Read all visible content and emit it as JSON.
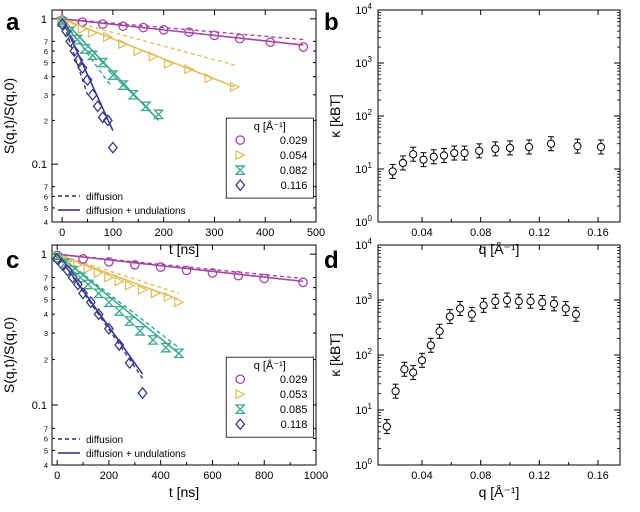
{
  "chart_data": [
    {
      "panel": "a",
      "type": "scatter",
      "xlabel": "t [ns]",
      "ylabel": "S(q,t)/S(q,0)",
      "xlim": [
        -20,
        500
      ],
      "ylim": [
        0.04,
        1.15
      ],
      "ylog": true,
      "xticks": [
        0,
        100,
        200,
        300,
        400,
        500
      ],
      "yticks_major": [
        0.1,
        1
      ],
      "yticks_minor": [
        0.04,
        0.05,
        0.06,
        0.07,
        0.2,
        0.3,
        0.4,
        0.5,
        0.6,
        0.7
      ],
      "legend_title": "q [Å⁻¹]",
      "legend_position": "bottom-right",
      "line_legend": [
        "diffusion",
        "diffusion + undulations"
      ],
      "series": [
        {
          "name": "0.029",
          "color": "#a347a3",
          "marker": "circle",
          "x": [
            0,
            40,
            80,
            120,
            160,
            200,
            250,
            300,
            350,
            410,
            475
          ],
          "y": [
            0.98,
            0.95,
            0.92,
            0.89,
            0.87,
            0.84,
            0.81,
            0.77,
            0.73,
            0.69,
            0.64
          ],
          "fit_undulations": [
            [
              0,
              1.0
            ],
            [
              475,
              0.66
            ]
          ],
          "fit_diffusion": [
            [
              0,
              1.0
            ],
            [
              475,
              0.72
            ]
          ]
        },
        {
          "name": "0.054",
          "color": "#e0c060",
          "marker": "triangle-right",
          "x": [
            0,
            20,
            40,
            60,
            90,
            120,
            150,
            180,
            210,
            250,
            290,
            340
          ],
          "y": [
            0.97,
            0.9,
            0.85,
            0.8,
            0.75,
            0.67,
            0.6,
            0.55,
            0.49,
            0.45,
            0.39,
            0.34
          ],
          "fit_undulations": [
            [
              0,
              1.0
            ],
            [
              340,
              0.34
            ]
          ],
          "fit_diffusion": [
            [
              0,
              1.0
            ],
            [
              340,
              0.48
            ]
          ]
        },
        {
          "name": "0.082",
          "color": "#3aa98f",
          "marker": "hourglass",
          "x": [
            0,
            15,
            30,
            45,
            60,
            80,
            100,
            120,
            140,
            165,
            190
          ],
          "y": [
            0.95,
            0.82,
            0.72,
            0.62,
            0.56,
            0.5,
            0.41,
            0.35,
            0.3,
            0.25,
            0.22
          ],
          "fit_undulations": [
            [
              0,
              1.0
            ],
            [
              190,
              0.2
            ]
          ],
          "fit_diffusion": [
            [
              0,
              1.0
            ],
            [
              95,
              0.35
            ]
          ]
        },
        {
          "name": "0.116",
          "color": "#3a3a8a",
          "marker": "diamond",
          "x": [
            0,
            8,
            16,
            24,
            32,
            40,
            50,
            60,
            70,
            80,
            90,
            100
          ],
          "y": [
            0.92,
            0.82,
            0.7,
            0.6,
            0.52,
            0.46,
            0.38,
            0.3,
            0.25,
            0.21,
            0.2,
            0.13
          ],
          "fit_undulations": [
            [
              0,
              1.0
            ],
            [
              100,
              0.17
            ]
          ],
          "fit_diffusion": [
            [
              0,
              1.0
            ],
            [
              50,
              0.3
            ]
          ]
        }
      ]
    },
    {
      "panel": "b",
      "type": "scatter",
      "xlabel": "q [Å⁻¹]",
      "ylabel": "κ [kBT]",
      "xlim": [
        0.01,
        0.175
      ],
      "ylim": [
        1,
        10000
      ],
      "ylog": true,
      "xticks": [
        0.04,
        0.08,
        0.12,
        0.16
      ],
      "yticks": [
        1,
        10,
        100,
        1000,
        10000
      ],
      "series": [
        {
          "name": "",
          "color": "#000000",
          "marker": "circle-errorbar",
          "x": [
            0.02,
            0.027,
            0.034,
            0.041,
            0.048,
            0.055,
            0.062,
            0.069,
            0.079,
            0.09,
            0.1,
            0.113,
            0.128,
            0.146,
            0.162
          ],
          "y": [
            9,
            13,
            19,
            15,
            17,
            18,
            20,
            20,
            22,
            24,
            25,
            26,
            30,
            27,
            26
          ]
        }
      ]
    },
    {
      "panel": "c",
      "type": "scatter",
      "xlabel": "t [ns]",
      "ylabel": "S(q,t)/S(q,0)",
      "xlim": [
        -20,
        1000
      ],
      "ylim": [
        0.04,
        1.15
      ],
      "ylog": true,
      "xticks": [
        0,
        200,
        400,
        600,
        800,
        1000
      ],
      "yticks_major": [
        0.1,
        1
      ],
      "yticks_minor": [
        0.04,
        0.05,
        0.06,
        0.07,
        0.2,
        0.3,
        0.4,
        0.5,
        0.6,
        0.7
      ],
      "legend_title": "q [Å⁻¹]",
      "legend_position": "bottom-right",
      "line_legend": [
        "diffusion",
        "diffusion + undulations"
      ],
      "series": [
        {
          "name": "0.029",
          "color": "#a347a3",
          "marker": "circle",
          "x": [
            0,
            100,
            200,
            300,
            400,
            500,
            600,
            700,
            800,
            950
          ],
          "y": [
            0.98,
            0.93,
            0.89,
            0.85,
            0.82,
            0.78,
            0.75,
            0.72,
            0.69,
            0.65
          ],
          "fit_undulations": [
            [
              0,
              1.0
            ],
            [
              950,
              0.66
            ]
          ],
          "fit_diffusion": [
            [
              0,
              1.0
            ],
            [
              950,
              0.69
            ]
          ]
        },
        {
          "name": "0.053",
          "color": "#e0c060",
          "marker": "triangle-right",
          "x": [
            0,
            40,
            80,
            120,
            160,
            200,
            240,
            280,
            330,
            380,
            430,
            470
          ],
          "y": [
            0.97,
            0.9,
            0.85,
            0.8,
            0.75,
            0.7,
            0.66,
            0.62,
            0.58,
            0.55,
            0.52,
            0.48
          ],
          "fit_undulations": [
            [
              0,
              1.0
            ],
            [
              470,
              0.5
            ]
          ],
          "fit_diffusion": [
            [
              0,
              1.0
            ],
            [
              470,
              0.55
            ]
          ]
        },
        {
          "name": "0.085",
          "color": "#3aa98f",
          "marker": "hourglass",
          "x": [
            0,
            30,
            60,
            90,
            120,
            160,
            200,
            240,
            280,
            320,
            370,
            420,
            470
          ],
          "y": [
            0.95,
            0.87,
            0.78,
            0.7,
            0.63,
            0.55,
            0.48,
            0.42,
            0.36,
            0.31,
            0.27,
            0.24,
            0.22
          ],
          "fit_undulations": [
            [
              0,
              1.0
            ],
            [
              470,
              0.22
            ]
          ],
          "fit_diffusion": [
            [
              0,
              1.0
            ],
            [
              470,
              0.24
            ]
          ]
        },
        {
          "name": "0.118",
          "color": "#3a3a8a",
          "marker": "diamond",
          "x": [
            0,
            20,
            40,
            60,
            80,
            100,
            130,
            160,
            200,
            240,
            280,
            330
          ],
          "y": [
            0.93,
            0.85,
            0.78,
            0.7,
            0.63,
            0.55,
            0.48,
            0.4,
            0.32,
            0.25,
            0.19,
            0.12
          ],
          "fit_undulations": [
            [
              0,
              1.0
            ],
            [
              330,
              0.16
            ]
          ],
          "fit_diffusion": [
            [
              0,
              1.0
            ],
            [
              330,
              0.15
            ]
          ]
        }
      ]
    },
    {
      "panel": "d",
      "type": "scatter",
      "xlabel": "q [Å⁻¹]",
      "ylabel": "κ [kBT]",
      "xlim": [
        0.01,
        0.175
      ],
      "ylim": [
        1,
        10000
      ],
      "ylog": true,
      "xticks": [
        0.04,
        0.08,
        0.12,
        0.16
      ],
      "yticks": [
        1,
        10,
        100,
        1000,
        10000
      ],
      "series": [
        {
          "name": "",
          "color": "#000000",
          "marker": "circle-errorbar",
          "x": [
            0.016,
            0.022,
            0.028,
            0.034,
            0.04,
            0.046,
            0.052,
            0.059,
            0.066,
            0.074,
            0.082,
            0.09,
            0.098,
            0.106,
            0.114,
            0.122,
            0.13,
            0.138,
            0.145
          ],
          "y": [
            5,
            22,
            55,
            48,
            80,
            150,
            270,
            500,
            700,
            550,
            800,
            950,
            1000,
            950,
            950,
            900,
            850,
            700,
            550
          ]
        }
      ]
    }
  ]
}
